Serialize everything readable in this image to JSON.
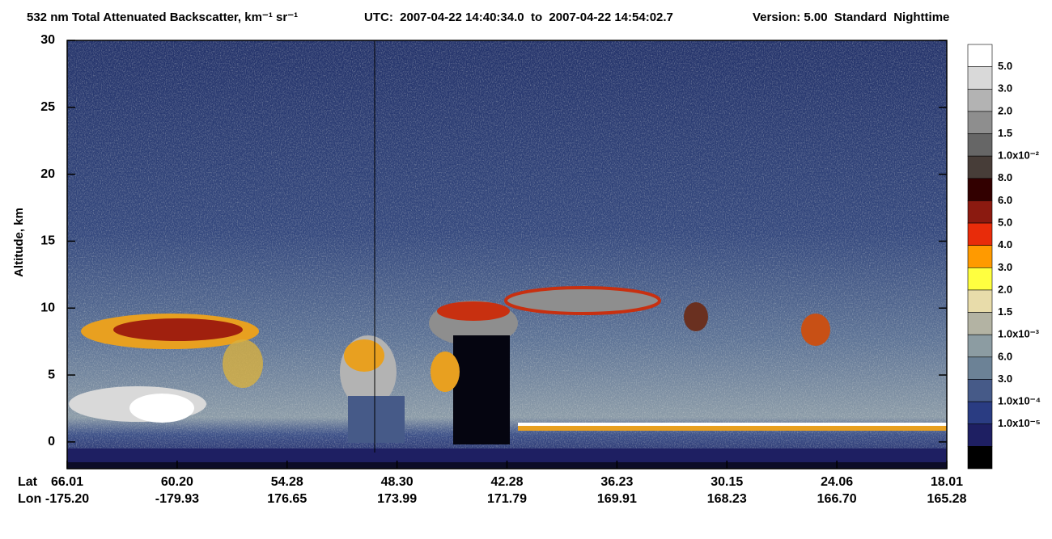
{
  "chart_data": {
    "type": "heatmap",
    "title": "532 nm Total Attenuated Backscatter, km⁻¹ sr⁻¹",
    "subtitle": "UTC:  2007-04-22 14:40:34.0  to  2007-04-22 14:54:02.7",
    "annotation": "Version: 5.00  Standard  Nighttime",
    "ylabel": "Altitude, km",
    "ylim": [
      -2,
      30
    ],
    "yticks": [
      0,
      5,
      10,
      15,
      20,
      25,
      30
    ],
    "x_rows": [
      {
        "name": "Lat",
        "labels": [
          "66.01",
          "60.20",
          "54.28",
          "48.30",
          "42.28",
          "36.23",
          "30.15",
          "24.06",
          "18.01"
        ]
      },
      {
        "name": "Lon",
        "labels": [
          "-175.20",
          "-179.93",
          "176.65",
          "173.99",
          "171.79",
          "169.91",
          "168.23",
          "166.70",
          "165.28"
        ]
      }
    ],
    "colorbar": {
      "colors": [
        "#ffffff",
        "#d9d9d9",
        "#b3b3b3",
        "#8e8e8e",
        "#666666",
        "#473d38",
        "#320000",
        "#8b1a10",
        "#e82c0a",
        "#ff9a00",
        "#ffff40",
        "#e8dcaa",
        "#b3b3a3",
        "#8c9ca2",
        "#6c8296",
        "#465a88",
        "#2a3c82",
        "#1e1f62",
        "#000000"
      ],
      "labels": [
        "5.0",
        "3.0",
        "2.0",
        "1.5",
        "1.0x10⁻²",
        "8.0",
        "6.0",
        "5.0",
        "4.0",
        "3.0",
        "2.0",
        "1.5",
        "1.0x10⁻³",
        "6.0",
        "3.0",
        "1.0x10⁻⁴",
        "1.0x10⁻⁵"
      ]
    }
  }
}
